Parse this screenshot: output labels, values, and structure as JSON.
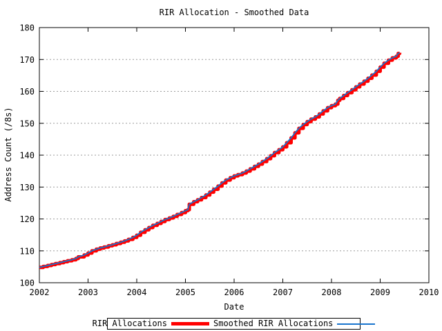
{
  "chart_data": {
    "type": "line",
    "title": "RIR Allocation - Smoothed Data",
    "xlabel": "Date",
    "ylabel": "Address Count (/8s)",
    "xlim": [
      2002,
      2010
    ],
    "ylim": [
      100,
      180
    ],
    "x_ticks": [
      2002,
      2003,
      2004,
      2005,
      2006,
      2007,
      2008,
      2009,
      2010
    ],
    "y_ticks": [
      100,
      110,
      120,
      130,
      140,
      150,
      160,
      170,
      180
    ],
    "grid": {
      "horizontal_dotted": true,
      "vertical": false,
      "color": "#9a9a9a"
    },
    "legend": {
      "position": "bottom-center",
      "boxed": true
    },
    "x": [
      2002.0,
      2002.08,
      2002.17,
      2002.25,
      2002.33,
      2002.42,
      2002.5,
      2002.58,
      2002.67,
      2002.75,
      2002.8,
      2002.92,
      2003.0,
      2003.08,
      2003.17,
      2003.25,
      2003.33,
      2003.42,
      2003.5,
      2003.58,
      2003.67,
      2003.75,
      2003.83,
      2003.92,
      2004.0,
      2004.08,
      2004.17,
      2004.25,
      2004.33,
      2004.42,
      2004.5,
      2004.58,
      2004.67,
      2004.75,
      2004.83,
      2004.92,
      2005.0,
      2005.05,
      2005.08,
      2005.17,
      2005.25,
      2005.33,
      2005.42,
      2005.5,
      2005.58,
      2005.67,
      2005.75,
      2005.83,
      2005.92,
      2006.0,
      2006.08,
      2006.17,
      2006.25,
      2006.33,
      2006.42,
      2006.5,
      2006.58,
      2006.67,
      2006.75,
      2006.83,
      2006.92,
      2007.0,
      2007.08,
      2007.17,
      2007.25,
      2007.33,
      2007.42,
      2007.5,
      2007.58,
      2007.67,
      2007.75,
      2007.83,
      2007.92,
      2008.0,
      2008.08,
      2008.13,
      2008.17,
      2008.25,
      2008.33,
      2008.42,
      2008.5,
      2008.58,
      2008.67,
      2008.75,
      2008.83,
      2008.92,
      2009.0,
      2009.08,
      2009.17,
      2009.25,
      2009.33,
      2009.37,
      2009.4
    ],
    "series": [
      {
        "name": "RIR Allocations",
        "color": "#ff0000",
        "line_width": 5,
        "interpolation": "step",
        "values": [
          104.8,
          105.1,
          105.4,
          105.7,
          106.0,
          106.3,
          106.6,
          106.9,
          107.2,
          107.6,
          108.1,
          108.7,
          109.3,
          110.0,
          110.5,
          110.9,
          111.2,
          111.6,
          111.9,
          112.3,
          112.7,
          113.1,
          113.6,
          114.2,
          114.9,
          115.8,
          116.6,
          117.3,
          118.0,
          118.6,
          119.2,
          119.8,
          120.3,
          120.8,
          121.4,
          122.0,
          122.6,
          122.9,
          124.6,
          125.4,
          126.0,
          126.7,
          127.5,
          128.4,
          129.3,
          130.3,
          131.3,
          132.2,
          132.9,
          133.5,
          133.9,
          134.4,
          135.0,
          135.7,
          136.5,
          137.2,
          138.0,
          138.9,
          139.8,
          140.8,
          141.7,
          142.6,
          143.9,
          145.4,
          147.0,
          148.4,
          149.6,
          150.5,
          151.3,
          152.0,
          152.9,
          153.9,
          154.9,
          155.5,
          156.0,
          157.2,
          157.8,
          158.7,
          159.6,
          160.5,
          161.4,
          162.3,
          163.2,
          164.1,
          165.1,
          166.3,
          167.6,
          168.8,
          169.8,
          170.5,
          171.0,
          171.9,
          172.1
        ]
      },
      {
        "name": "Smoothed RIR Allocations",
        "color": "#1874cd",
        "line_width": 1.8,
        "interpolation": "linear",
        "values": [
          104.8,
          105.1,
          105.4,
          105.7,
          106.0,
          106.3,
          106.6,
          106.9,
          107.2,
          107.6,
          108.1,
          108.7,
          109.3,
          110.0,
          110.5,
          110.9,
          111.2,
          111.6,
          111.9,
          112.3,
          112.7,
          113.1,
          113.6,
          114.2,
          114.9,
          115.8,
          116.6,
          117.3,
          118.0,
          118.6,
          119.2,
          119.8,
          120.3,
          120.8,
          121.4,
          122.0,
          122.6,
          122.9,
          124.6,
          125.4,
          126.0,
          126.7,
          127.5,
          128.4,
          129.3,
          130.3,
          131.3,
          132.2,
          132.9,
          133.5,
          133.9,
          134.4,
          135.0,
          135.7,
          136.5,
          137.2,
          138.0,
          138.9,
          139.8,
          140.8,
          141.7,
          142.6,
          143.9,
          145.4,
          147.0,
          148.4,
          149.6,
          150.5,
          151.3,
          152.0,
          152.9,
          153.9,
          154.9,
          155.5,
          156.0,
          157.2,
          157.8,
          158.7,
          159.6,
          160.5,
          161.4,
          162.3,
          163.2,
          164.1,
          165.1,
          166.3,
          167.6,
          168.8,
          169.8,
          170.5,
          171.0,
          171.9,
          172.1
        ]
      }
    ]
  }
}
